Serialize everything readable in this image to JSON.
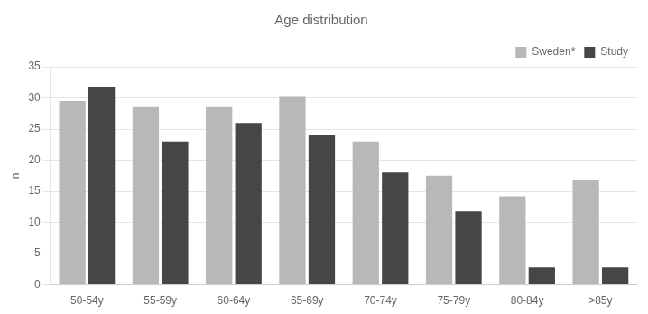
{
  "chart_data": {
    "type": "bar",
    "title": "Age distribution",
    "categories": [
      "50-54y",
      "55-59y",
      "60-64y",
      "65-69y",
      "70-74y",
      "75-79y",
      "80-84y",
      ">85y"
    ],
    "series": [
      {
        "name": "Sweden*",
        "color": "#b8b8b8",
        "values": [
          29.5,
          28.5,
          28.5,
          30.3,
          23.0,
          17.5,
          14.2,
          16.8
        ]
      },
      {
        "name": "Study",
        "color": "#464646",
        "values": [
          31.8,
          23.0,
          26.0,
          24.0,
          18.0,
          11.8,
          2.8,
          2.8
        ]
      }
    ],
    "ylabel": "n",
    "ylim": [
      0,
      35
    ],
    "yticks": [
      0,
      5,
      10,
      15,
      20,
      25,
      30,
      35
    ],
    "grid": true,
    "legend": "upper right"
  }
}
